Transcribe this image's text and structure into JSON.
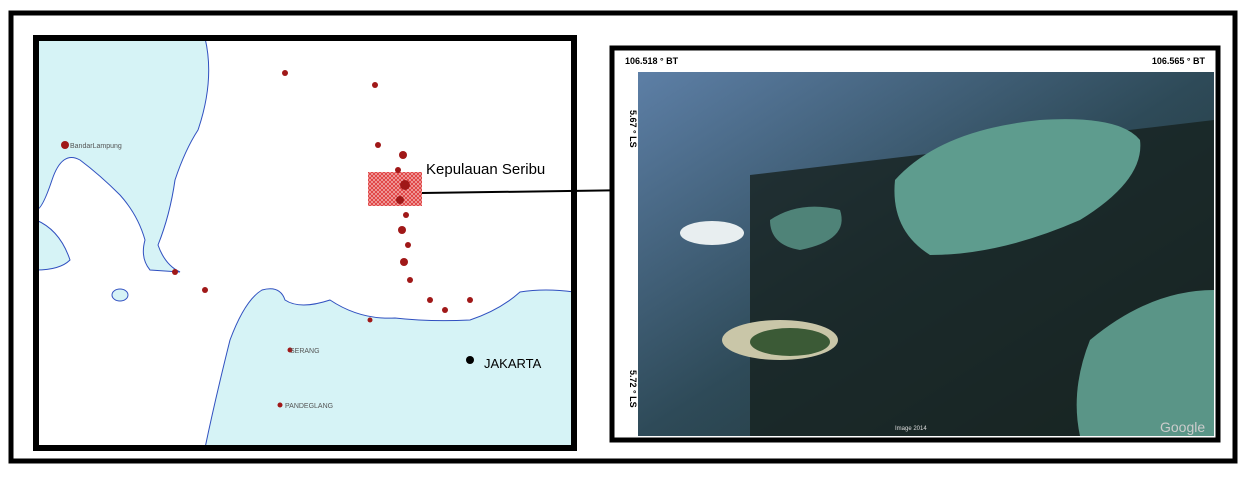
{
  "left_map": {
    "labels": {
      "island_group": "Kepulauan Seribu",
      "capital": "JAKARTA",
      "city_1": "BandarLampung",
      "city_2": "SERANG",
      "city_3": "PANDEGLANG"
    }
  },
  "right_image": {
    "top_left_coord": "106.518 ° BT",
    "top_right_coord": "106.565 ° BT",
    "left_top_coord": "5.67 ° LS",
    "left_bottom_coord": "5.72 ° LS",
    "credit": "Image 2014",
    "brand": "Google"
  }
}
